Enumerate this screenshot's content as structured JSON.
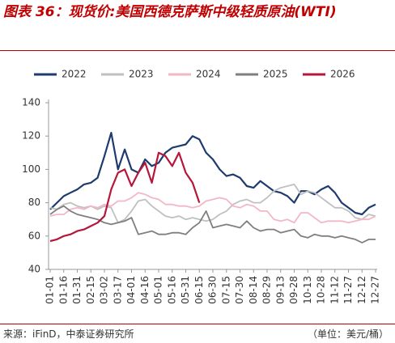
{
  "chart_data": {
    "type": "line",
    "title": "图表 36：现货价:美国西德克萨斯中级轻质原油(WTI)",
    "source": "来源：iFinD，中泰证券研究所",
    "unit": "（单位：美元/桶）",
    "categories": [
      "01-01",
      null,
      "01-16",
      null,
      "01-31",
      null,
      "02-15",
      null,
      "03-02",
      null,
      "03-17",
      null,
      "04-01",
      null,
      "04-16",
      null,
      "05-01",
      null,
      "05-16",
      null,
      "05-31",
      null,
      "06-15",
      null,
      "06-30",
      null,
      "07-15",
      null,
      "07-30",
      null,
      "08-14",
      null,
      "08-29",
      null,
      "09-13",
      null,
      "09-28",
      null,
      "10-13",
      null,
      "10-28",
      null,
      "11-12",
      null,
      "11-27",
      null,
      "12-12",
      null,
      "12-27"
    ],
    "ylim": [
      40,
      140
    ],
    "yticks": [
      40,
      60,
      80,
      100,
      120,
      140
    ],
    "grid": false,
    "legend": "top",
    "series": [
      {
        "name": "2022",
        "color": "#1f3a6e",
        "values": [
          76,
          80,
          84,
          86,
          88,
          91,
          92,
          95,
          108,
          122,
          100,
          112,
          100,
          98,
          106,
          102,
          104,
          110,
          113,
          114,
          115,
          120,
          118,
          110,
          106,
          100,
          96,
          97,
          95,
          90,
          89,
          93,
          90,
          87,
          86,
          84,
          80,
          87,
          87,
          85,
          88,
          90,
          86,
          80,
          77,
          74,
          73,
          77,
          79
        ]
      },
      {
        "name": "2023",
        "color": "#c0c0c0",
        "values": [
          77,
          76,
          79,
          80,
          78,
          77,
          78,
          76,
          78,
          77,
          68,
          70,
          75,
          81,
          82,
          78,
          75,
          72,
          71,
          72,
          70,
          71,
          70,
          69,
          70,
          73,
          75,
          79,
          81,
          82,
          80,
          80,
          83,
          87,
          89,
          90,
          91,
          85,
          87,
          86,
          83,
          80,
          77,
          77,
          75,
          71,
          70,
          73,
          72
        ]
      },
      {
        "name": "2024",
        "color": "#f2b8c6",
        "values": [
          72,
          73,
          73,
          76,
          77,
          76,
          78,
          77,
          79,
          78,
          81,
          81,
          83,
          86,
          85,
          83,
          82,
          79,
          79,
          78,
          78,
          77,
          78,
          81,
          82,
          83,
          82,
          78,
          77,
          79,
          78,
          75,
          75,
          70,
          69,
          70,
          68,
          74,
          74,
          71,
          68,
          69,
          69,
          69,
          68,
          69,
          70,
          70,
          72
        ]
      },
      {
        "name": "2025",
        "color": "#7f7f7f",
        "values": [
          73,
          76,
          78,
          75,
          73,
          72,
          71,
          70,
          68,
          67,
          68,
          69,
          71,
          61,
          62,
          63,
          61,
          61,
          62,
          62,
          61,
          65,
          68,
          75,
          65,
          66,
          67,
          66,
          65,
          69,
          65,
          63,
          64,
          64,
          62,
          63,
          64,
          60,
          59,
          61,
          60,
          60,
          59,
          60,
          59,
          58,
          56,
          58,
          58
        ]
      },
      {
        "name": "2026",
        "color": "#b5163a",
        "values": [
          57,
          58,
          60,
          61,
          63,
          64,
          66,
          68,
          72,
          88,
          98,
          100,
          90,
          98,
          104,
          92,
          110,
          108,
          102,
          110,
          98,
          92,
          80,
          null,
          null,
          null,
          null,
          null,
          null,
          null,
          null,
          null,
          null,
          null,
          null,
          null,
          null,
          null,
          null,
          null,
          null,
          null,
          null,
          null,
          null,
          null,
          null,
          null,
          null
        ]
      }
    ]
  }
}
